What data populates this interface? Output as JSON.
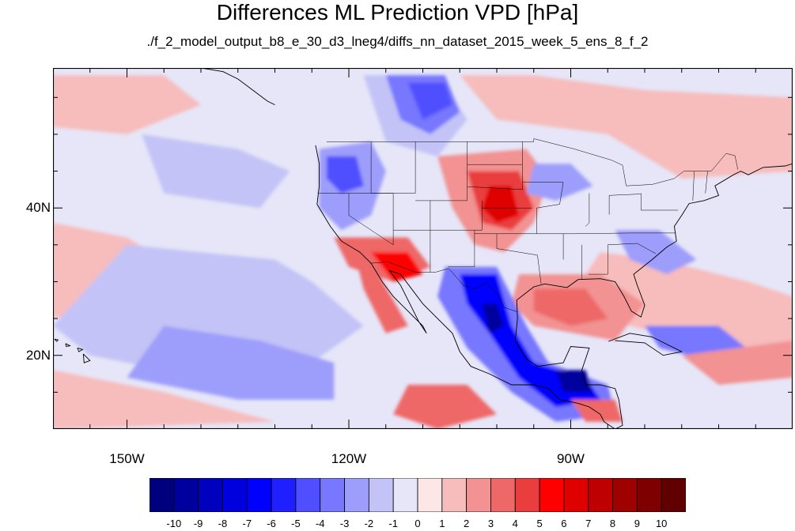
{
  "title": "Differences ML Prediction VPD [hPa]",
  "subtitle": "./f_2_model_output_b8_e_30_d3_lneg4/diffs_nn_dataset_2015_week_5_ens_8_f_2",
  "map": {
    "projection": "cylindrical-equidistant",
    "lon_range": [
      -160,
      -60
    ],
    "lat_range": [
      10,
      59
    ],
    "lat_labels": [
      "20N",
      "40N"
    ],
    "lon_labels": [
      "150W",
      "120W",
      "90W"
    ],
    "field": "VPD difference",
    "units": "hPa"
  },
  "colorbar": {
    "levels": [
      "-10",
      "-9",
      "-8",
      "-7",
      "-6",
      "-5",
      "-4",
      "-3",
      "-2",
      "-1",
      "0",
      "1",
      "2",
      "3",
      "4",
      "5",
      "6",
      "7",
      "8",
      "9",
      "10"
    ],
    "colors": [
      "#00007f",
      "#00009f",
      "#0000bf",
      "#0000df",
      "#0000ff",
      "#1f1fff",
      "#4f4fff",
      "#7777ff",
      "#9d9dfb",
      "#c3c3f7",
      "#e6e6f8",
      "#fde6e6",
      "#f7bcbc",
      "#f29292",
      "#ee6868",
      "#ea3e3e",
      "#ff0000",
      "#df0000",
      "#bf0000",
      "#9f0000",
      "#7f0000",
      "#600000"
    ]
  },
  "colors": {
    "background_field": "#e6e6f8",
    "coastline": "#000000",
    "frame": "#000000"
  }
}
